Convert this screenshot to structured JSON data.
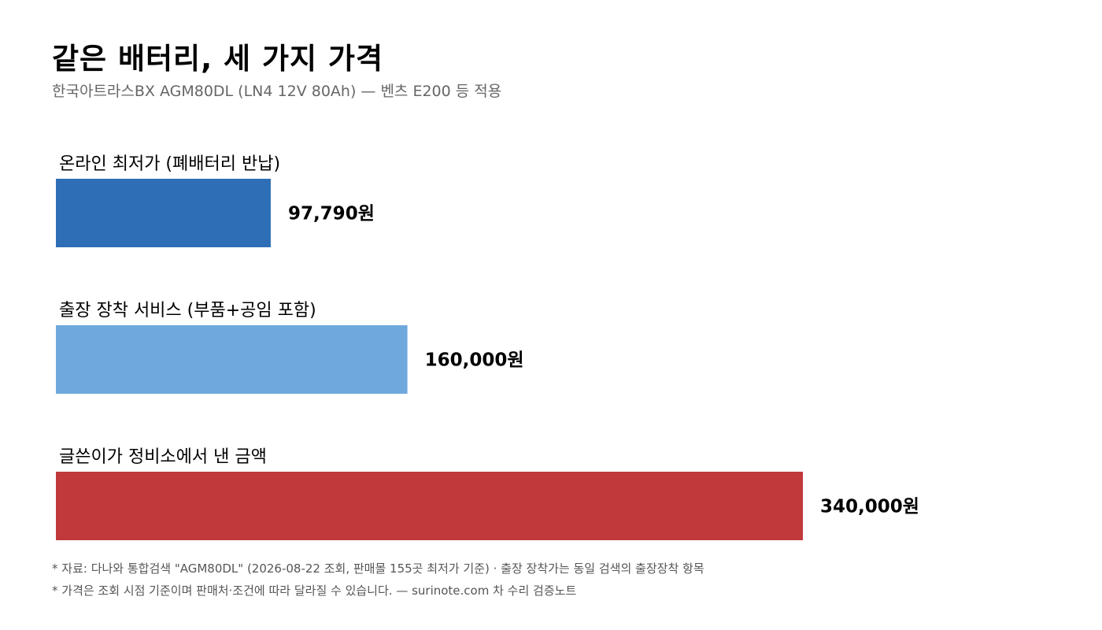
{
  "chart_data": {
    "type": "bar",
    "orientation": "horizontal",
    "title": "같은 배터리, 세 가지 가격",
    "subtitle": "한국아트라스BX AGM80DL (LN4 12V 80Ah) — 벤츠 E200 등 적용",
    "categories": [
      "온라인 최저가 (폐배터리 반납)",
      "출장 장착 서비스 (부품+공임 포함)",
      "글쓴이가 정비소에서 낸 금액"
    ],
    "values": [
      97790,
      160000,
      340000
    ],
    "value_labels": [
      "97,790원",
      "160,000원",
      "340,000원"
    ],
    "colors": [
      "#2e6eb6",
      "#6fa8dc",
      "#c0393b"
    ],
    "xlim": [
      0,
      340000
    ],
    "grid": false,
    "legend": "none"
  },
  "footnotes": [
    "* 자료: 다나와 통합검색 \"AGM80DL\" (2026-08-22 조회, 판매몰 155곳 최저가 기준) · 출장 장착가는 동일 검색의 출장장착 항목",
    "* 가격은 조회 시점 기준이며 판매처·조건에 따라 달라질 수 있습니다. — surinote.com 차 수리 검증노트"
  ]
}
